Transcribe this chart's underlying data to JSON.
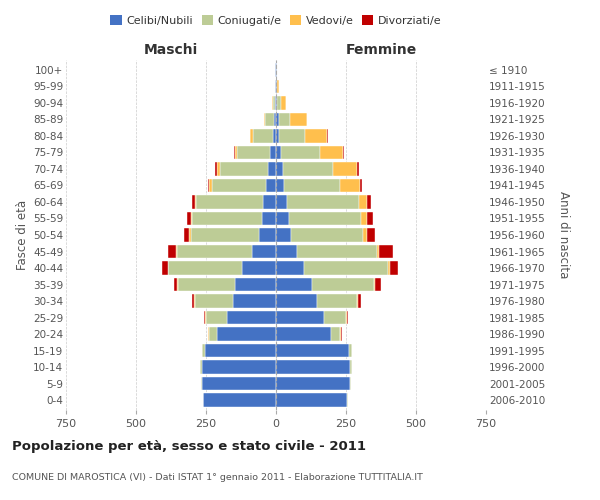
{
  "age_groups": [
    "0-4",
    "5-9",
    "10-14",
    "15-19",
    "20-24",
    "25-29",
    "30-34",
    "35-39",
    "40-44",
    "45-49",
    "50-54",
    "55-59",
    "60-64",
    "65-69",
    "70-74",
    "75-79",
    "80-84",
    "85-89",
    "90-94",
    "95-99",
    "100+"
  ],
  "birth_years": [
    "2006-2010",
    "2001-2005",
    "1996-2000",
    "1991-1995",
    "1986-1990",
    "1981-1985",
    "1976-1980",
    "1971-1975",
    "1966-1970",
    "1961-1965",
    "1956-1960",
    "1951-1955",
    "1946-1950",
    "1941-1945",
    "1936-1940",
    "1931-1935",
    "1926-1930",
    "1921-1925",
    "1916-1920",
    "1911-1915",
    "≤ 1910"
  ],
  "male": {
    "celibi": [
      260,
      265,
      265,
      255,
      210,
      175,
      155,
      145,
      120,
      85,
      60,
      50,
      45,
      35,
      30,
      20,
      12,
      8,
      4,
      2,
      2
    ],
    "coniugati": [
      2,
      2,
      5,
      10,
      30,
      75,
      135,
      205,
      265,
      270,
      245,
      250,
      240,
      195,
      170,
      120,
      70,
      30,
      8,
      2,
      0
    ],
    "vedovi": [
      0,
      0,
      0,
      0,
      2,
      2,
      2,
      2,
      2,
      2,
      4,
      4,
      5,
      8,
      12,
      8,
      10,
      5,
      2,
      0,
      0
    ],
    "divorziati": [
      0,
      0,
      0,
      0,
      2,
      4,
      8,
      12,
      20,
      30,
      20,
      15,
      10,
      5,
      5,
      2,
      0,
      0,
      0,
      0,
      0
    ]
  },
  "female": {
    "nubili": [
      255,
      265,
      265,
      260,
      195,
      170,
      145,
      130,
      100,
      75,
      55,
      45,
      40,
      30,
      25,
      18,
      12,
      10,
      5,
      2,
      2
    ],
    "coniugate": [
      2,
      2,
      5,
      12,
      35,
      80,
      145,
      220,
      300,
      285,
      255,
      260,
      255,
      200,
      180,
      140,
      90,
      40,
      12,
      2,
      0
    ],
    "vedove": [
      0,
      0,
      0,
      0,
      2,
      2,
      2,
      4,
      6,
      8,
      15,
      20,
      30,
      70,
      85,
      80,
      80,
      60,
      20,
      5,
      0
    ],
    "divorziate": [
      0,
      0,
      0,
      0,
      2,
      5,
      10,
      20,
      30,
      50,
      30,
      20,
      15,
      8,
      8,
      4,
      2,
      0,
      0,
      0,
      0
    ]
  },
  "colors": {
    "celibi_nubili": "#4472C4",
    "coniugati": "#BDCC96",
    "vedovi": "#FFBF4D",
    "divorziati": "#C00000"
  },
  "title": "Popolazione per età, sesso e stato civile - 2011",
  "subtitle": "COMUNE DI MAROSTICA (VI) - Dati ISTAT 1° gennaio 2011 - Elaborazione TUTTITALIA.IT",
  "xlabel_left": "Maschi",
  "xlabel_right": "Femmine",
  "ylabel_left": "Fasce di età",
  "ylabel_right": "Anni di nascita",
  "xlim": 750,
  "legend_labels": [
    "Celibi/Nubili",
    "Coniugati/e",
    "Vedovi/e",
    "Divorziati/e"
  ],
  "background_color": "#ffffff",
  "grid_color": "#cccccc"
}
